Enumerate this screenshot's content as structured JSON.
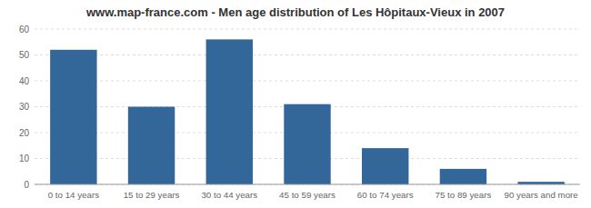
{
  "chart_data": {
    "type": "bar",
    "title": "www.map-france.com - Men age distribution of Les Hôpitaux-Vieux in 2007",
    "categories": [
      "0 to 14 years",
      "15 to 29 years",
      "30 to 44 years",
      "45 to 59 years",
      "60 to 74 years",
      "75 to 89 years",
      "90 years and more"
    ],
    "values": [
      52,
      30,
      56,
      31,
      14,
      6,
      1
    ],
    "color": "#336699",
    "ylim": [
      0,
      60
    ],
    "yticks": [
      0,
      10,
      20,
      30,
      40,
      50,
      60
    ],
    "grid": true
  }
}
